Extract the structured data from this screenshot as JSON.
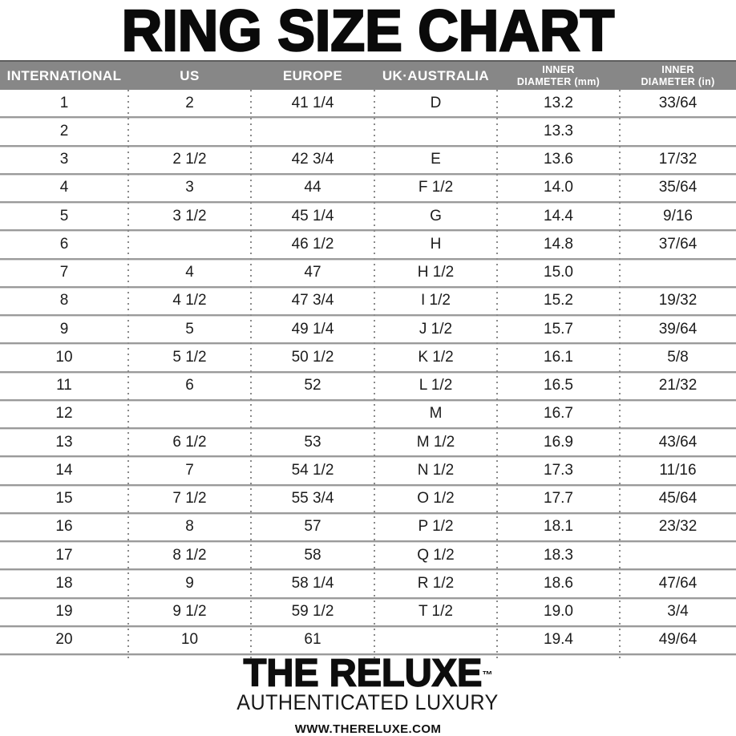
{
  "title": "RING SIZE CHART",
  "chart_data": {
    "type": "table",
    "title": "RING SIZE CHART",
    "columns": [
      {
        "label": "INTERNATIONAL"
      },
      {
        "label": "US"
      },
      {
        "label": "EUROPE"
      },
      {
        "label": "UK·AUSTRALIA"
      },
      {
        "label": "INNER DIAMETER (mm)",
        "line1": "INNER",
        "line2": "DIAMETER (mm)"
      },
      {
        "label": "INNER DIAMETER (in)",
        "line1": "INNER",
        "line2": "DIAMETER (in)"
      }
    ],
    "rows": [
      [
        "1",
        "2",
        "41 1/4",
        "D",
        "13.2",
        "33/64"
      ],
      [
        "2",
        "",
        "",
        "",
        "13.3",
        ""
      ],
      [
        "3",
        "2 1/2",
        "42 3/4",
        "E",
        "13.6",
        "17/32"
      ],
      [
        "4",
        "3",
        "44",
        "F 1/2",
        "14.0",
        "35/64"
      ],
      [
        "5",
        "3 1/2",
        "45 1/4",
        "G",
        "14.4",
        "9/16"
      ],
      [
        "6",
        "",
        "46 1/2",
        "H",
        "14.8",
        "37/64"
      ],
      [
        "7",
        "4",
        "47",
        "H 1/2",
        "15.0",
        ""
      ],
      [
        "8",
        "4 1/2",
        "47 3/4",
        "I 1/2",
        "15.2",
        "19/32"
      ],
      [
        "9",
        "5",
        "49 1/4",
        "J 1/2",
        "15.7",
        "39/64"
      ],
      [
        "10",
        "5 1/2",
        "50 1/2",
        "K 1/2",
        "16.1",
        "5/8"
      ],
      [
        "11",
        "6",
        "52",
        "L 1/2",
        "16.5",
        "21/32"
      ],
      [
        "12",
        "",
        "",
        "M",
        "16.7",
        ""
      ],
      [
        "13",
        "6 1/2",
        "53",
        "M 1/2",
        "16.9",
        "43/64"
      ],
      [
        "14",
        "7",
        "54 1/2",
        "N 1/2",
        "17.3",
        "11/16"
      ],
      [
        "15",
        "7 1/2",
        "55 3/4",
        "O 1/2",
        "17.7",
        "45/64"
      ],
      [
        "16",
        "8",
        "57",
        "P 1/2",
        "18.1",
        "23/32"
      ],
      [
        "17",
        "8 1/2",
        "58",
        "Q 1/2",
        "18.3",
        ""
      ],
      [
        "18",
        "9",
        "58 1/4",
        "R 1/2",
        "18.6",
        "47/64"
      ],
      [
        "19",
        "9 1/2",
        "59 1/2",
        "T 1/2",
        "19.0",
        "3/4"
      ],
      [
        "20",
        "10",
        "61",
        "",
        "19.4",
        "49/64"
      ]
    ]
  },
  "footer": {
    "brand": "THE RELUXE",
    "trademark": "™",
    "tagline": "AUTHENTICATED LUXURY",
    "website": "WWW.THERELUXE.COM"
  },
  "colors": {
    "header_bg": "#878787",
    "header_text": "#ffffff",
    "row_divider": "#9a9a9a",
    "dotted_divider": "#8a8a8a",
    "body_text": "#1c1c1c",
    "title_text": "#0a0a0a",
    "background": "#ffffff"
  }
}
